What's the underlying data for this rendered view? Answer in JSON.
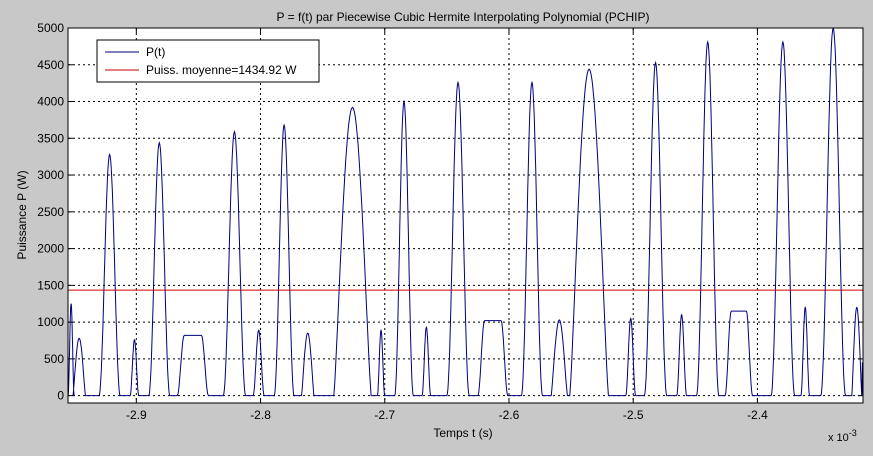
{
  "chart_data": {
    "type": "line",
    "title": "P = f(t) par Piecewise Cubic Hermite Interpolating Polynomial (PCHIP)",
    "xlabel": "Temps t (s)",
    "ylabel": "Puissance P (W)",
    "x_multiplier_label": "x 10",
    "x_multiplier_exponent": "-3",
    "xlim": [
      -2.955,
      -2.315
    ],
    "ylim": [
      -100,
      5000
    ],
    "x_ticks": [
      -2.9,
      -2.8,
      -2.7,
      -2.6,
      -2.5,
      -2.4
    ],
    "x_tick_labels": [
      "-2.9",
      "-2.8",
      "-2.7",
      "-2.6",
      "-2.5",
      "-2.4"
    ],
    "y_ticks": [
      0,
      500,
      1000,
      1500,
      2000,
      2500,
      3000,
      3500,
      4000,
      4500,
      5000
    ],
    "y_tick_labels": [
      "0",
      "500",
      "1000",
      "1500",
      "2000",
      "2500",
      "3000",
      "3500",
      "4000",
      "4500",
      "5000"
    ],
    "grid": true,
    "legend_position": "top-left",
    "series": [
      {
        "name": "P(t)",
        "color": "#00007f",
        "pulses": [
          {
            "start": -2.955,
            "end": -2.95,
            "peak": 1250,
            "shape": "sharp"
          },
          {
            "start": -2.951,
            "end": -2.941,
            "peak": 780,
            "shape": "round"
          },
          {
            "start": -2.93,
            "end": -2.913,
            "peak": 3280,
            "shape": "sharp"
          },
          {
            "start": -2.905,
            "end": -2.898,
            "peak": 760,
            "shape": "sharp"
          },
          {
            "start": -2.89,
            "end": -2.873,
            "peak": 3440,
            "shape": "sharp"
          },
          {
            "start": -2.867,
            "end": -2.842,
            "peak": 820,
            "shape": "flat"
          },
          {
            "start": -2.83,
            "end": -2.812,
            "peak": 3590,
            "shape": "sharp"
          },
          {
            "start": -2.806,
            "end": -2.797,
            "peak": 890,
            "shape": "sharp"
          },
          {
            "start": -2.789,
            "end": -2.773,
            "peak": 3680,
            "shape": "sharp"
          },
          {
            "start": -2.767,
            "end": -2.757,
            "peak": 850,
            "shape": "round"
          },
          {
            "start": -2.741,
            "end": -2.711,
            "peak": 3920,
            "shape": "round"
          },
          {
            "start": -2.706,
            "end": -2.7,
            "peak": 890,
            "shape": "sharp"
          },
          {
            "start": -2.692,
            "end": -2.677,
            "peak": 4000,
            "shape": "sharp"
          },
          {
            "start": -2.67,
            "end": -2.663,
            "peak": 930,
            "shape": "sharp"
          },
          {
            "start": -2.65,
            "end": -2.632,
            "peak": 4260,
            "shape": "sharp"
          },
          {
            "start": -2.625,
            "end": -2.601,
            "peak": 1020,
            "shape": "flat"
          },
          {
            "start": -2.59,
            "end": -2.573,
            "peak": 4260,
            "shape": "sharp"
          },
          {
            "start": -2.566,
            "end": -2.553,
            "peak": 1030,
            "shape": "round"
          },
          {
            "start": -2.551,
            "end": -2.52,
            "peak": 4440,
            "shape": "round"
          },
          {
            "start": -2.506,
            "end": -2.498,
            "peak": 1050,
            "shape": "sharp"
          },
          {
            "start": -2.491,
            "end": -2.473,
            "peak": 4530,
            "shape": "sharp"
          },
          {
            "start": -2.465,
            "end": -2.457,
            "peak": 1100,
            "shape": "sharp"
          },
          {
            "start": -2.449,
            "end": -2.431,
            "peak": 4810,
            "shape": "sharp"
          },
          {
            "start": -2.426,
            "end": -2.404,
            "peak": 1150,
            "shape": "flat"
          },
          {
            "start": -2.389,
            "end": -2.37,
            "peak": 4810,
            "shape": "sharp"
          },
          {
            "start": -2.365,
            "end": -2.358,
            "peak": 1200,
            "shape": "sharp"
          },
          {
            "start": -2.349,
            "end": -2.329,
            "peak": 5000,
            "shape": "sharp"
          },
          {
            "start": -2.324,
            "end": -2.316,
            "peak": 1200,
            "shape": "round"
          },
          {
            "start": -2.316,
            "end": -2.315,
            "peak": 450,
            "shape": "sharp"
          }
        ]
      },
      {
        "name": "Puiss. moyenne=1434.92 W",
        "color": "#cc0000",
        "constant": 1434.92
      }
    ]
  }
}
